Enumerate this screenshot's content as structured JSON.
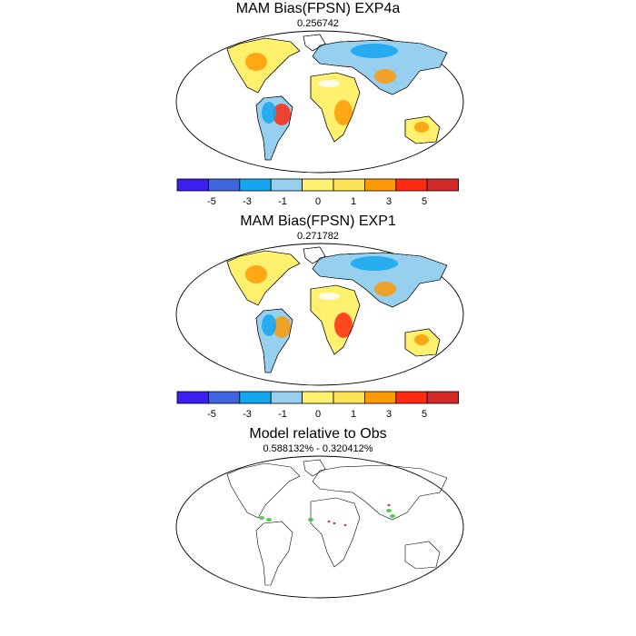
{
  "panels": [
    {
      "title": "MAM Bias(FPSN) EXP4a",
      "subtitle": "0.256742"
    },
    {
      "title": "MAM Bias(FPSN) EXP1",
      "subtitle": "0.271782"
    },
    {
      "title": "Model relative to Obs",
      "subtitle": "0.588132% - 0.320412%"
    }
  ],
  "colorbar": {
    "colors": [
      "#3a1ff0",
      "#3f66e0",
      "#14a7ef",
      "#96d0ee",
      "#fff06e",
      "#fde356",
      "#ff9a06",
      "#ff2a0f",
      "#d42a2a"
    ],
    "labels": [
      "-5",
      "-3",
      "-1",
      "0",
      "1",
      "3",
      "5"
    ]
  },
  "diff_colors": {
    "better": "#3dbb3d",
    "worse": "#e02020"
  }
}
